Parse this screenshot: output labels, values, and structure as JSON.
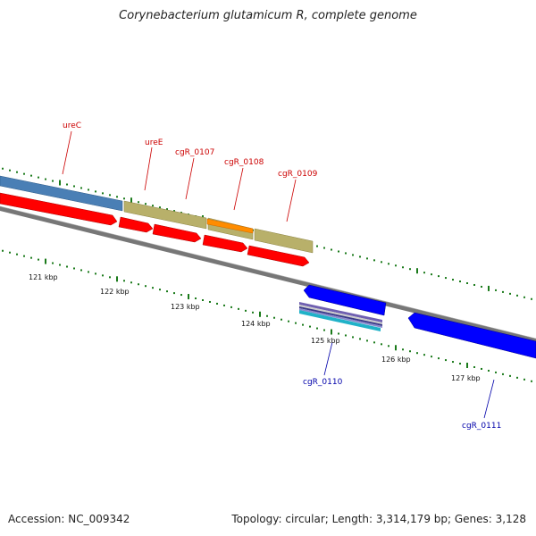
{
  "title": "Corynebacterium glutamicum R, complete genome",
  "footer": {
    "accession": "Accession: NC_009342",
    "topology": "Topology: circular; Length: 3,314,179 bp; Genes: 3,128"
  },
  "scale": {
    "ticks": [
      "121 kbp",
      "122 kbp",
      "123 kbp",
      "124 kbp",
      "125 kbp",
      "126 kbp",
      "127 kbp"
    ]
  },
  "genes_forward": [
    "ureC",
    "ureE",
    "cgR_0107",
    "cgR_0108",
    "cgR_0109"
  ],
  "genes_reverse": [
    "cgR_0110",
    "cgR_0111"
  ],
  "colors": {
    "forward_label": "#cc0000",
    "reverse_label": "#0000aa",
    "cds_red": "#ff0000",
    "blue_feature": "#0000ff",
    "steel": "#4a7fb5",
    "khaki": "#b8b06a",
    "orange": "#ff8c00",
    "cyan": "#20b2c8",
    "backbone": "#777777",
    "tick_green": "#1a7a1a"
  }
}
